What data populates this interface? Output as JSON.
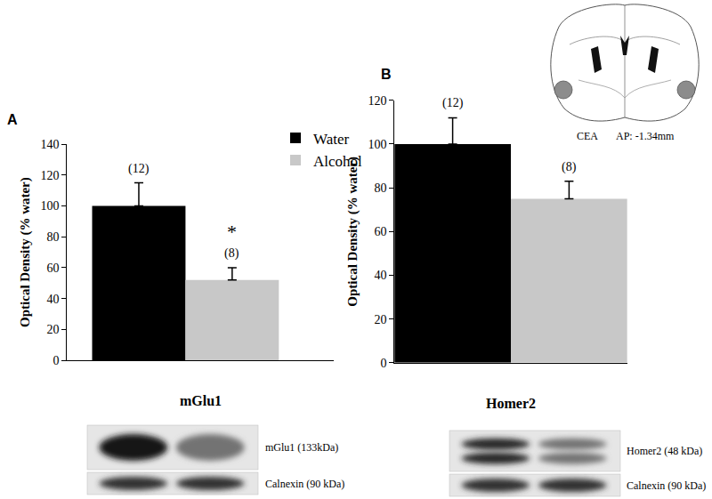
{
  "chart_data": [
    {
      "type": "bar",
      "title": "A",
      "y_label": "Optical Density (% water)",
      "x_label": "mGlu1",
      "categories": [
        null
      ],
      "series": [
        {
          "name": "Water",
          "color": "#000000",
          "values": [
            100
          ],
          "errors": [
            15
          ],
          "labels": [
            "(12)"
          ]
        },
        {
          "name": "Alcohol",
          "color": "#c8c8c8",
          "values": [
            52
          ],
          "errors": [
            8
          ],
          "labels": [
            "(8)"
          ]
        }
      ],
      "annotations": [
        {
          "text": "*",
          "series": "Alcohol"
        }
      ],
      "ylim": [
        0,
        140
      ],
      "yticks": [
        0,
        20,
        40,
        60,
        80,
        100,
        120,
        140
      ],
      "grid": false,
      "legend": "top right"
    },
    {
      "type": "bar",
      "title": "B",
      "y_label": "Optical Density (% water)",
      "x_label": "Homer2",
      "categories": [
        null
      ],
      "series": [
        {
          "name": "Water",
          "color": "#000000",
          "values": [
            100
          ],
          "errors": [
            12
          ],
          "labels": [
            "(12)"
          ]
        },
        {
          "name": "Alcohol",
          "color": "#c8c8c8",
          "values": [
            75
          ],
          "errors": [
            8
          ],
          "labels": [
            "(8)"
          ]
        }
      ],
      "ylim": [
        0,
        120
      ],
      "yticks": [
        0,
        20,
        40,
        60,
        80,
        100,
        120
      ],
      "grid": false
    }
  ],
  "blots": [
    {
      "bands": [
        "mGlu1 (133kDa)",
        "Calnexin (90 kDa)"
      ]
    },
    {
      "bands": [
        "Homer2 (48 kDa)",
        "Calnexin (90 kDa)"
      ]
    }
  ],
  "atlas": {
    "region": "CEA",
    "section": "AP: -1.34mm"
  }
}
